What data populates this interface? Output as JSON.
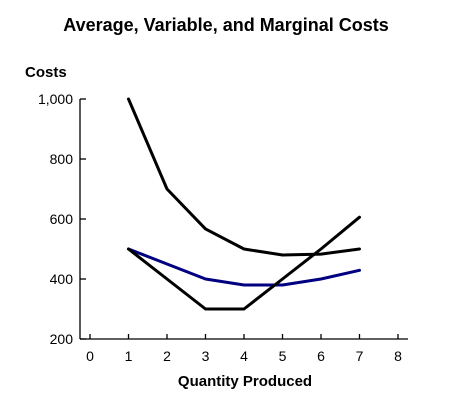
{
  "chart_data": {
    "type": "line",
    "title": "Average, Variable, and Marginal Costs",
    "xlabel": "Quantity Produced",
    "ylabel": "Costs",
    "xlim": [
      0,
      8
    ],
    "ylim": [
      200,
      1000
    ],
    "x_ticks": [
      "0",
      "1",
      "2",
      "3",
      "4",
      "5",
      "6",
      "7",
      "8"
    ],
    "y_ticks": [
      "200",
      "400",
      "600",
      "800",
      "1,000"
    ],
    "grid": false,
    "legend": "none",
    "series": [
      {
        "color": "#000000",
        "x": [
          1,
          2,
          3,
          4,
          5,
          6,
          7
        ],
        "values": [
          1000,
          700,
          567,
          500,
          480,
          483,
          500
        ]
      },
      {
        "color": "#000080",
        "x": [
          1,
          2,
          3,
          4,
          5,
          6,
          7
        ],
        "values": [
          500,
          450,
          400,
          380,
          380,
          400,
          429
        ]
      },
      {
        "color": "#000000",
        "x": [
          1,
          2,
          3,
          4,
          5,
          6,
          7
        ],
        "values": [
          500,
          400,
          300,
          300,
          400,
          500,
          606
        ]
      }
    ]
  }
}
